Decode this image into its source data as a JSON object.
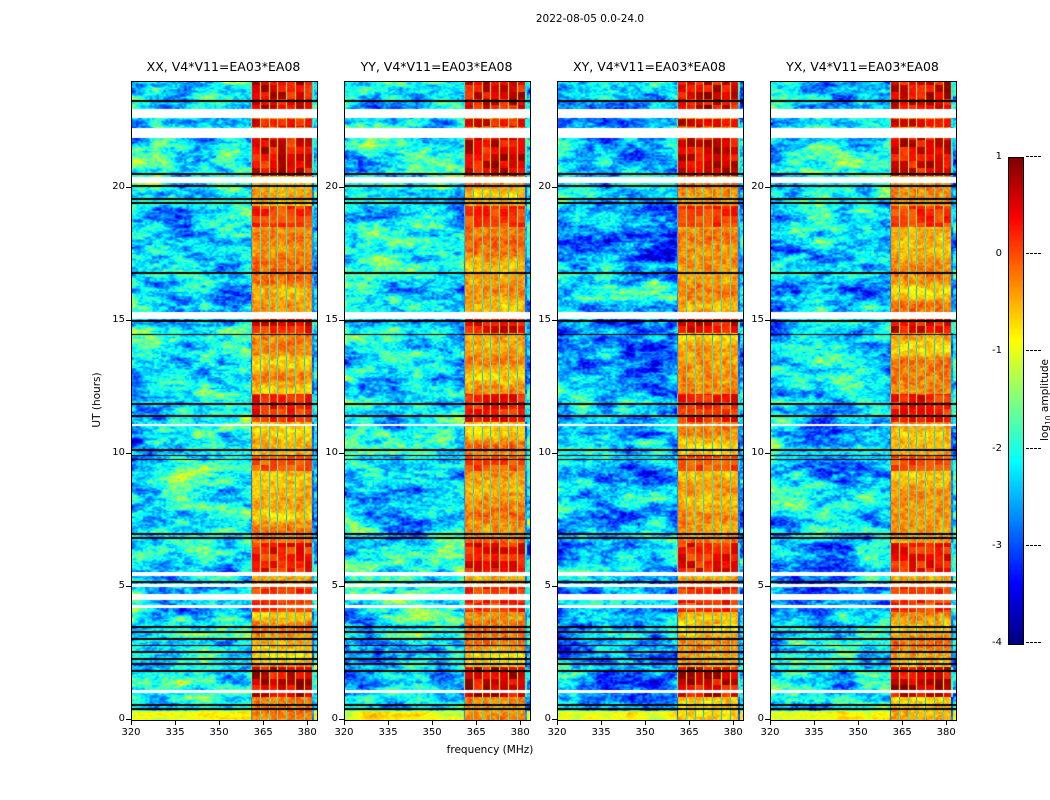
{
  "chart_data": {
    "type": "heatmap",
    "title": "2022-08-05 0.0-24.0",
    "panels": [
      {
        "id": "XX",
        "label": "XX, V4*V11=EA03*EA08",
        "base_level": -2.25,
        "seed": 1
      },
      {
        "id": "YY",
        "label": "YY, V4*V11=EA03*EA08",
        "base_level": -2.2,
        "seed": 2
      },
      {
        "id": "XY",
        "label": "XY, V4*V11=EA03*EA08",
        "base_level": -2.55,
        "seed": 3
      },
      {
        "id": "YX",
        "label": "YX, V4*V11=EA03*EA08",
        "base_level": -2.35,
        "seed": 4
      }
    ],
    "x_axis": {
      "label": "frequency (MHz)",
      "range": [
        320,
        383
      ],
      "ticks": [
        320,
        335,
        350,
        365,
        380
      ]
    },
    "y_axis": {
      "label": "UT (hours)",
      "range": [
        0,
        24
      ],
      "ticks": [
        0,
        5,
        10,
        15,
        20
      ]
    },
    "colorbar": {
      "label": "log10 amplitude",
      "label_parts": {
        "prefix": "log",
        "sub": "10",
        "suffix": " amplitude"
      },
      "range": [
        -4,
        1
      ],
      "ticks": [
        1,
        0,
        -1,
        -2,
        -3,
        -4
      ],
      "colormap": "jet"
    },
    "features": {
      "background": {
        "level": -2.3,
        "spread": 3.0
      },
      "bottom_strip": {
        "t_range": [
          0,
          0.35
        ],
        "level": -0.95
      },
      "rfi_band": {
        "freq_range": [
          360.5,
          382
        ],
        "level": -0.4,
        "subline_spacing_mhz": 3
      },
      "white_gaps": [
        [
          22.65,
          23.0
        ],
        [
          21.9,
          22.27
        ],
        [
          20.2,
          20.42
        ],
        [
          15.1,
          15.35
        ],
        [
          11.05,
          11.15
        ],
        [
          5.42,
          5.58
        ],
        [
          5.0,
          5.12
        ],
        [
          4.5,
          4.75
        ],
        [
          4.2,
          4.32
        ],
        [
          1.02,
          1.14
        ]
      ],
      "black_lines": [
        23.3,
        20.55,
        20.08,
        19.6,
        19.45,
        16.8,
        15.0,
        14.5,
        11.9,
        11.45,
        10.15,
        9.95,
        9.8,
        7.0,
        6.85,
        5.2,
        3.5,
        3.3,
        3.05,
        2.8,
        2.55,
        2.3,
        2.1,
        1.85,
        0.55,
        0.4
      ],
      "red_blocks": [
        [
          23.0,
          24.0,
          0.95
        ],
        [
          22.3,
          22.62,
          0.85
        ],
        [
          20.45,
          21.9,
          0.9
        ],
        [
          18.55,
          19.35,
          0.55
        ],
        [
          14.55,
          15.35,
          0.85
        ],
        [
          11.2,
          12.25,
          0.7
        ],
        [
          9.35,
          9.95,
          0.45
        ],
        [
          5.5,
          6.65,
          0.75
        ],
        [
          4.05,
          5.0,
          0.6
        ],
        [
          0.85,
          2.0,
          1.0
        ]
      ]
    }
  }
}
